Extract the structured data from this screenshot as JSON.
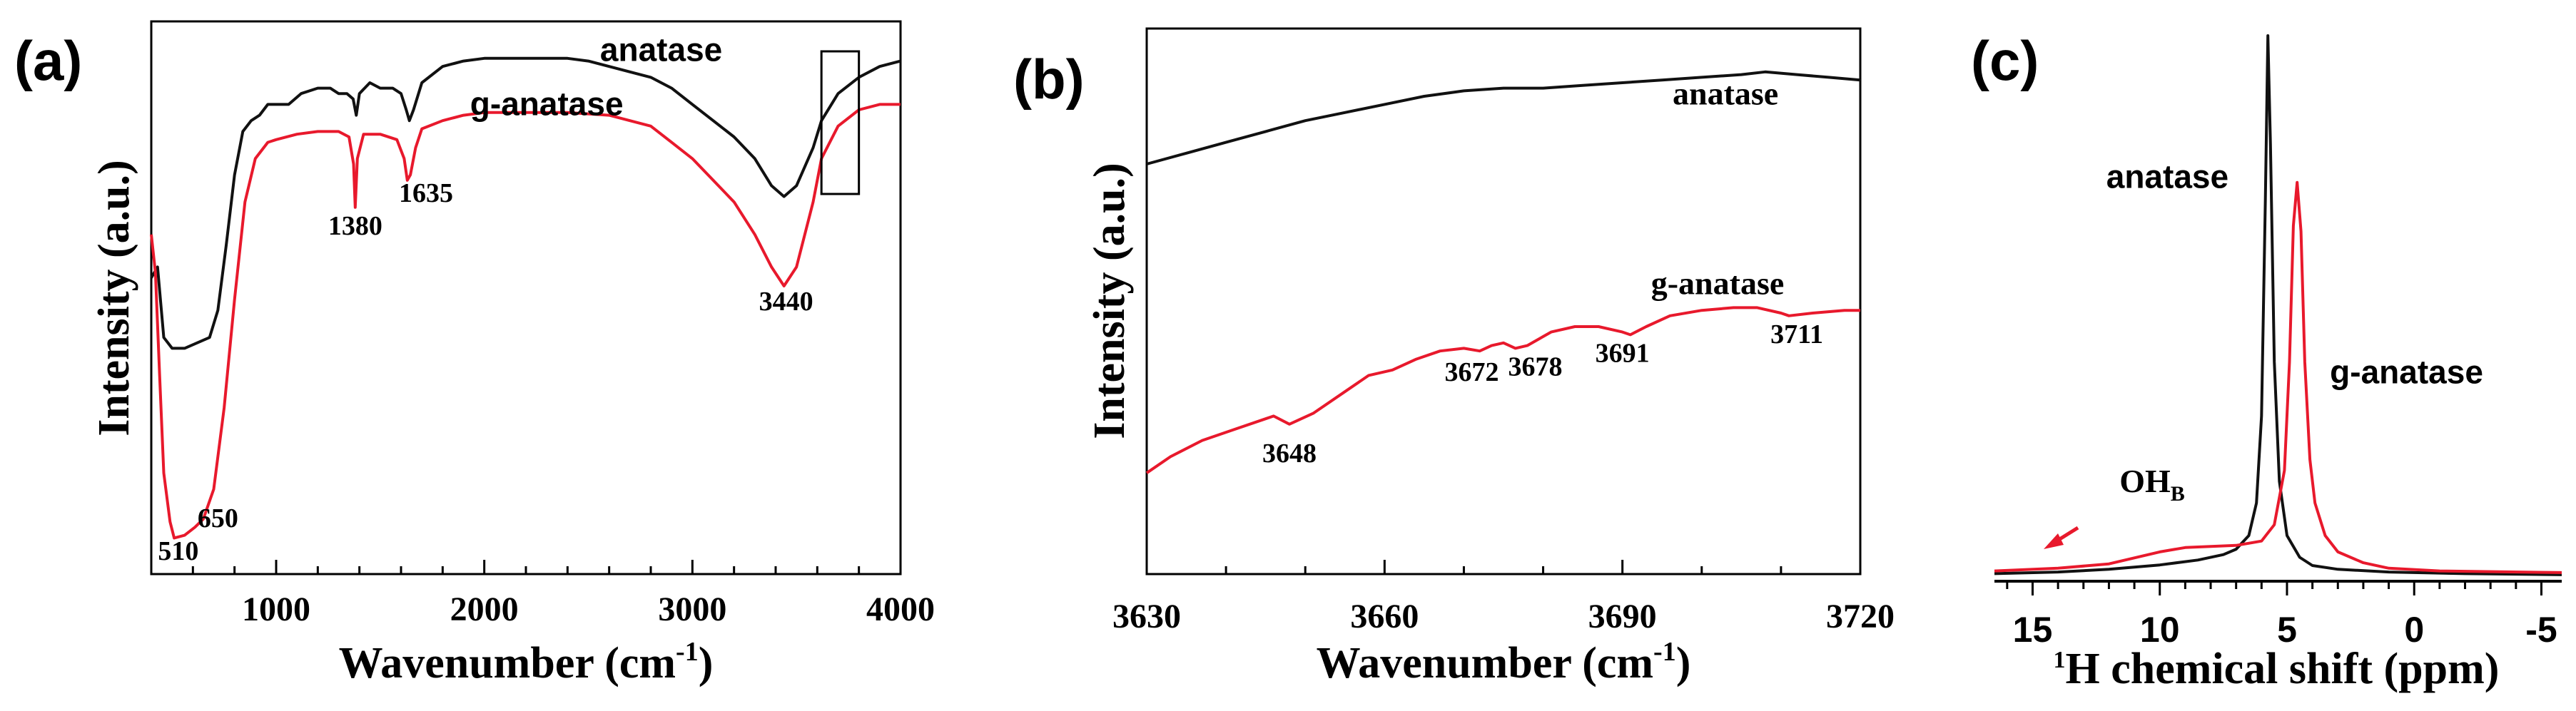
{
  "colors": {
    "black_series": "#111111",
    "red_series": "#e8192c",
    "axis": "#000000"
  },
  "chart_data": [
    {
      "panel": "(a)",
      "type": "line",
      "xlabel": "Wavenumber (cm",
      "xlabel_sup": "-1",
      "xlabel_tail": ")",
      "ylabel": "Intensity (a.u.)",
      "xlim": [
        400,
        4000
      ],
      "ylim": [
        0,
        100
      ],
      "xticks": [
        1000,
        2000,
        3000,
        4000
      ],
      "xtick_labels": [
        "1000",
        "2000",
        "3000",
        "4000"
      ],
      "inset_box": {
        "x_range": [
          3620,
          3800
        ]
      },
      "series": [
        {
          "name": "anatase",
          "color": "#111111",
          "points": [
            [
              400,
              54
            ],
            [
              430,
              56
            ],
            [
              460,
              43
            ],
            [
              500,
              41
            ],
            [
              560,
              41
            ],
            [
              620,
              42
            ],
            [
              680,
              43
            ],
            [
              720,
              48
            ],
            [
              760,
              60
            ],
            [
              800,
              73
            ],
            [
              840,
              81
            ],
            [
              880,
              83
            ],
            [
              920,
              84
            ],
            [
              960,
              86
            ],
            [
              1000,
              86
            ],
            [
              1060,
              86
            ],
            [
              1120,
              88
            ],
            [
              1200,
              89
            ],
            [
              1260,
              89
            ],
            [
              1300,
              88
            ],
            [
              1340,
              88
            ],
            [
              1370,
              87
            ],
            [
              1385,
              84
            ],
            [
              1400,
              88
            ],
            [
              1450,
              90
            ],
            [
              1500,
              89
            ],
            [
              1560,
              89
            ],
            [
              1600,
              88
            ],
            [
              1625,
              85
            ],
            [
              1640,
              83
            ],
            [
              1660,
              85
            ],
            [
              1700,
              90
            ],
            [
              1800,
              93
            ],
            [
              1900,
              94
            ],
            [
              2000,
              94.5
            ],
            [
              2100,
              94.5
            ],
            [
              2200,
              94.5
            ],
            [
              2300,
              94.5
            ],
            [
              2400,
              94.5
            ],
            [
              2500,
              94
            ],
            [
              2600,
              93
            ],
            [
              2700,
              92
            ],
            [
              2800,
              91
            ],
            [
              2900,
              89
            ],
            [
              3000,
              86
            ],
            [
              3100,
              83
            ],
            [
              3200,
              80
            ],
            [
              3300,
              76
            ],
            [
              3380,
              71
            ],
            [
              3440,
              69
            ],
            [
              3500,
              71
            ],
            [
              3580,
              78
            ],
            [
              3620,
              83
            ],
            [
              3700,
              88
            ],
            [
              3800,
              91
            ],
            [
              3900,
              93
            ],
            [
              4000,
              94
            ]
          ]
        },
        {
          "name": "g-anatase",
          "color": "#e8192c",
          "points": [
            [
              400,
              62
            ],
            [
              420,
              55
            ],
            [
              440,
              36
            ],
            [
              460,
              18
            ],
            [
              490,
              9
            ],
            [
              510,
              6
            ],
            [
              560,
              6.5
            ],
            [
              610,
              8
            ],
            [
              650,
              9.5
            ],
            [
              700,
              15
            ],
            [
              750,
              30
            ],
            [
              800,
              50
            ],
            [
              850,
              68
            ],
            [
              900,
              76
            ],
            [
              960,
              79
            ],
            [
              1000,
              79.5
            ],
            [
              1100,
              80.5
            ],
            [
              1200,
              81
            ],
            [
              1300,
              81
            ],
            [
              1350,
              80
            ],
            [
              1372,
              75
            ],
            [
              1380,
              67
            ],
            [
              1390,
              76
            ],
            [
              1420,
              80.5
            ],
            [
              1500,
              80.5
            ],
            [
              1580,
              79.5
            ],
            [
              1615,
              76
            ],
            [
              1630,
              72
            ],
            [
              1645,
              73
            ],
            [
              1670,
              78
            ],
            [
              1700,
              81.5
            ],
            [
              1800,
              83
            ],
            [
              1900,
              84
            ],
            [
              2000,
              84.5
            ],
            [
              2200,
              84.5
            ],
            [
              2400,
              84.5
            ],
            [
              2600,
              84
            ],
            [
              2700,
              83
            ],
            [
              2800,
              82
            ],
            [
              2900,
              79
            ],
            [
              3000,
              76
            ],
            [
              3100,
              72
            ],
            [
              3200,
              68
            ],
            [
              3300,
              62
            ],
            [
              3380,
              56
            ],
            [
              3440,
              52.5
            ],
            [
              3500,
              56
            ],
            [
              3580,
              68
            ],
            [
              3620,
              76
            ],
            [
              3700,
              82
            ],
            [
              3800,
              85
            ],
            [
              3900,
              86
            ],
            [
              4000,
              86
            ]
          ]
        }
      ],
      "annotations": [
        {
          "text": "anatase",
          "x": 2850,
          "y": 94,
          "style": "series"
        },
        {
          "text": "g-anatase",
          "x": 2300,
          "y": 84,
          "style": "series"
        },
        {
          "text": "1380",
          "x": 1380,
          "y": 62,
          "style": "peak"
        },
        {
          "text": "1635",
          "x": 1720,
          "y": 68,
          "style": "peak"
        },
        {
          "text": "3440",
          "x": 3450,
          "y": 48,
          "style": "peak"
        },
        {
          "text": "510",
          "x": 530,
          "y": 2,
          "style": "peak"
        },
        {
          "text": "650",
          "x": 720,
          "y": 8,
          "style": "peak"
        }
      ]
    },
    {
      "panel": "(b)",
      "type": "line",
      "xlabel": "Wavenumber (cm",
      "xlabel_sup": "-1",
      "xlabel_tail": ")",
      "ylabel": "Intensity (a.u.)",
      "xlim": [
        3630,
        3720
      ],
      "ylim": [
        0,
        100
      ],
      "xticks": [
        3630,
        3660,
        3690,
        3720
      ],
      "xtick_labels": [
        "3630",
        "3660",
        "3690",
        "3720"
      ],
      "series": [
        {
          "name": "anatase",
          "color": "#111111",
          "points": [
            [
              3630,
              75
            ],
            [
              3635,
              77
            ],
            [
              3640,
              79
            ],
            [
              3645,
              81
            ],
            [
              3650,
              83
            ],
            [
              3655,
              84.5
            ],
            [
              3660,
              86
            ],
            [
              3665,
              87.5
            ],
            [
              3670,
              88.5
            ],
            [
              3675,
              89
            ],
            [
              3680,
              89
            ],
            [
              3685,
              89.5
            ],
            [
              3690,
              90
            ],
            [
              3695,
              90.5
            ],
            [
              3700,
              91
            ],
            [
              3705,
              91.5
            ],
            [
              3708,
              92
            ],
            [
              3712,
              91.5
            ],
            [
              3716,
              91
            ],
            [
              3720,
              90.5
            ]
          ]
        },
        {
          "name": "g-anatase",
          "color": "#e8192c",
          "points": [
            [
              3630,
              18
            ],
            [
              3633,
              21
            ],
            [
              3637,
              24
            ],
            [
              3641,
              26
            ],
            [
              3645,
              28
            ],
            [
              3646,
              28.5
            ],
            [
              3648,
              27
            ],
            [
              3651,
              29
            ],
            [
              3655,
              33
            ],
            [
              3658,
              36
            ],
            [
              3661,
              37
            ],
            [
              3664,
              39
            ],
            [
              3667,
              40.5
            ],
            [
              3670,
              41
            ],
            [
              3672,
              40.5
            ],
            [
              3673.5,
              41.5
            ],
            [
              3675,
              42
            ],
            [
              3676.5,
              41
            ],
            [
              3678,
              41.5
            ],
            [
              3681,
              44
            ],
            [
              3684,
              45
            ],
            [
              3687,
              45
            ],
            [
              3690,
              44
            ],
            [
              3691,
              43.5
            ],
            [
              3693,
              45
            ],
            [
              3696,
              47
            ],
            [
              3700,
              48
            ],
            [
              3704,
              48.5
            ],
            [
              3707,
              48.5
            ],
            [
              3710,
              47.5
            ],
            [
              3711,
              47
            ],
            [
              3714,
              47.5
            ],
            [
              3718,
              48
            ],
            [
              3720,
              48
            ]
          ]
        }
      ],
      "annotations": [
        {
          "text": "anatase",
          "x": 3703,
          "y": 86,
          "style": "series"
        },
        {
          "text": "g-anatase",
          "x": 3702,
          "y": 51,
          "style": "series"
        },
        {
          "text": "3648",
          "x": 3648,
          "y": 20,
          "style": "peak"
        },
        {
          "text": "3672",
          "x": 3671,
          "y": 35,
          "style": "peak"
        },
        {
          "text": "3678",
          "x": 3679,
          "y": 36,
          "style": "peak"
        },
        {
          "text": "3691",
          "x": 3690,
          "y": 38.5,
          "style": "peak"
        },
        {
          "text": "3711",
          "x": 3712,
          "y": 42,
          "style": "peak"
        }
      ]
    },
    {
      "panel": "(c)",
      "type": "line",
      "xlabel": "H chemical shift (ppm)",
      "xlabel_pre": "1",
      "ylabel": "",
      "xlim": [
        16.5,
        -5.8
      ],
      "ylim": [
        0,
        100
      ],
      "xticks": [
        15,
        10,
        5,
        0,
        -5
      ],
      "xtick_labels": [
        "15",
        "10",
        "5",
        "0",
        "-5"
      ],
      "series": [
        {
          "name": "anatase",
          "color": "#111111",
          "points": [
            [
              16.5,
              1
            ],
            [
              14,
              1.3
            ],
            [
              12,
              1.8
            ],
            [
              10,
              2.6
            ],
            [
              8.5,
              3.5
            ],
            [
              7.5,
              4.5
            ],
            [
              7,
              5.5
            ],
            [
              6.5,
              8
            ],
            [
              6.2,
              14
            ],
            [
              6,
              30
            ],
            [
              5.85,
              70
            ],
            [
              5.75,
              100
            ],
            [
              5.65,
              80
            ],
            [
              5.5,
              40
            ],
            [
              5.3,
              18
            ],
            [
              5,
              8
            ],
            [
              4.5,
              4
            ],
            [
              4,
              2.5
            ],
            [
              3,
              1.8
            ],
            [
              1,
              1.3
            ],
            [
              -2,
              1
            ],
            [
              -5.8,
              0.8
            ]
          ]
        },
        {
          "name": "g-anatase",
          "color": "#e8192c",
          "points": [
            [
              16.5,
              1.5
            ],
            [
              14,
              2
            ],
            [
              12,
              2.8
            ],
            [
              10,
              5
            ],
            [
              9,
              5.8
            ],
            [
              8,
              6
            ],
            [
              7,
              6.2
            ],
            [
              6,
              7
            ],
            [
              5.5,
              10
            ],
            [
              5.1,
              20
            ],
            [
              4.9,
              40
            ],
            [
              4.75,
              65
            ],
            [
              4.6,
              73
            ],
            [
              4.45,
              64
            ],
            [
              4.3,
              40
            ],
            [
              4.1,
              22
            ],
            [
              3.9,
              14
            ],
            [
              3.5,
              8
            ],
            [
              3,
              5
            ],
            [
              2,
              3
            ],
            [
              1,
              2
            ],
            [
              -1,
              1.5
            ],
            [
              -5.8,
              1.2
            ]
          ]
        }
      ],
      "annotations": [
        {
          "text": "anatase",
          "x": 9.7,
          "y": 72,
          "style": "series"
        },
        {
          "text": "g-anatase",
          "x": 0.3,
          "y": 36,
          "style": "series"
        },
        {
          "text": "OH",
          "sub": "B",
          "x": 10.3,
          "y": 16,
          "style": "oh"
        }
      ]
    }
  ]
}
